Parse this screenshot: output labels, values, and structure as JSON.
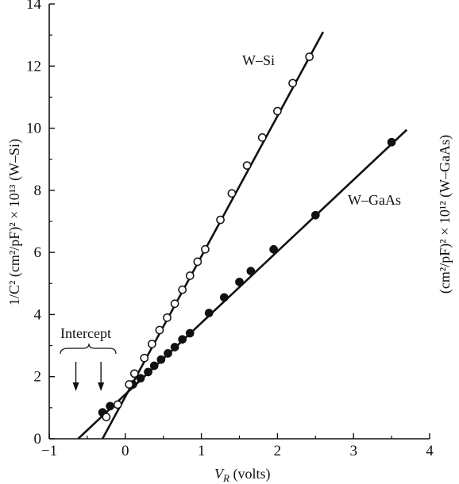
{
  "chart_data": {
    "type": "scatter",
    "title": "",
    "xlabel": {
      "main": "V",
      "sub": "R",
      "rest": " (volts)"
    },
    "ylabel_left": "1/C² (cm²/pF)² × 10¹³ (W–Si)",
    "ylabel_right": "(cm²/pF)² × 10¹² (W–GaAs)",
    "xlim": [
      -1,
      4
    ],
    "ylim": [
      0,
      14
    ],
    "xticks": [
      -1,
      0,
      1,
      2,
      3,
      4
    ],
    "yticks": [
      0,
      2,
      4,
      6,
      8,
      10,
      12,
      14
    ],
    "xtick_labels": [
      "−1",
      "0",
      "1",
      "2",
      "3",
      "4"
    ],
    "ytick_labels": [
      "0",
      "2",
      "4",
      "6",
      "8",
      "10",
      "12",
      "14"
    ],
    "grid": false,
    "series": [
      {
        "name": "W–Si",
        "marker": "open-circle",
        "fit_line": {
          "x": [
            -0.3,
            2.6
          ],
          "y": [
            0,
            13.1
          ]
        },
        "x": [
          -0.25,
          -0.1,
          0.05,
          0.12,
          0.25,
          0.35,
          0.45,
          0.55,
          0.65,
          0.75,
          0.85,
          0.95,
          1.05,
          1.25,
          1.4,
          1.6,
          1.8,
          2.0,
          2.2,
          2.42
        ],
        "y": [
          0.7,
          1.1,
          1.75,
          2.1,
          2.6,
          3.05,
          3.5,
          3.9,
          4.35,
          4.8,
          5.25,
          5.7,
          6.1,
          7.05,
          7.9,
          8.8,
          9.7,
          10.55,
          11.45,
          12.3
        ]
      },
      {
        "name": "W–GaAs",
        "marker": "filled-circle",
        "fit_line": {
          "x": [
            -0.62,
            3.7
          ],
          "y": [
            0,
            9.95
          ]
        },
        "x": [
          -0.3,
          -0.2,
          0.1,
          0.2,
          0.3,
          0.38,
          0.47,
          0.56,
          0.65,
          0.75,
          0.85,
          1.1,
          1.3,
          1.5,
          1.65,
          1.95,
          2.5,
          3.5
        ],
        "y": [
          0.85,
          1.05,
          1.75,
          1.95,
          2.15,
          2.35,
          2.55,
          2.75,
          2.95,
          3.2,
          3.4,
          4.05,
          4.55,
          5.05,
          5.4,
          6.1,
          7.2,
          9.55
        ]
      }
    ],
    "annotations": {
      "intercept": {
        "text": "Intercept",
        "arrows_x": [
          -0.65,
          -0.32
        ]
      }
    }
  }
}
